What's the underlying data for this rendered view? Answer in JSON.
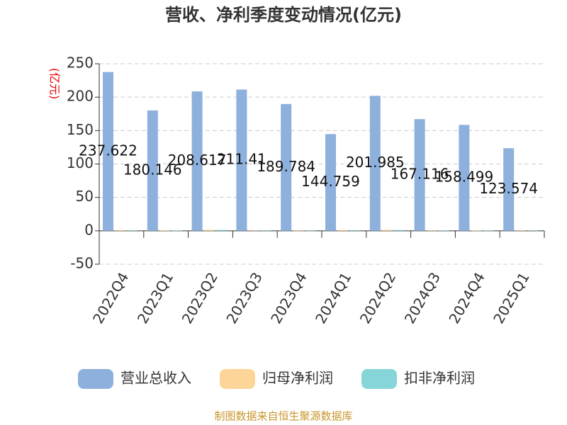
{
  "chart_data": {
    "type": "bar",
    "title": "营收、净利季度变动情况(亿元)",
    "y_label": "(亿元)",
    "categories": [
      "2022Q4",
      "2023Q1",
      "2023Q2",
      "2023Q3",
      "2023Q4",
      "2024Q1",
      "2024Q2",
      "2024Q3",
      "2024Q4",
      "2025Q1"
    ],
    "series": [
      {
        "name": "营业总收入",
        "color": "#8eb0dc",
        "values": [
          237.622,
          180.146,
          208.617,
          211.41,
          189.784,
          144.759,
          201.985,
          167.116,
          158.499,
          123.574
        ]
      },
      {
        "name": "归母净利润",
        "color": "#fdd598",
        "values": [
          0.8,
          0.4,
          1.5,
          0.6,
          0.2,
          1.1,
          1.4,
          0.5,
          0.3,
          0.6
        ]
      },
      {
        "name": "扣非净利润",
        "color": "#86d5d8",
        "values": [
          0.7,
          0.3,
          1.4,
          0.5,
          0.2,
          1.0,
          1.2,
          0.4,
          0.3,
          0.5
        ]
      }
    ],
    "ylim": [
      -50,
      250
    ],
    "yticks": [
      -50,
      0,
      50,
      100,
      150,
      200,
      250
    ],
    "grid": true,
    "source": "制图数据来自恒生聚源数据库"
  }
}
